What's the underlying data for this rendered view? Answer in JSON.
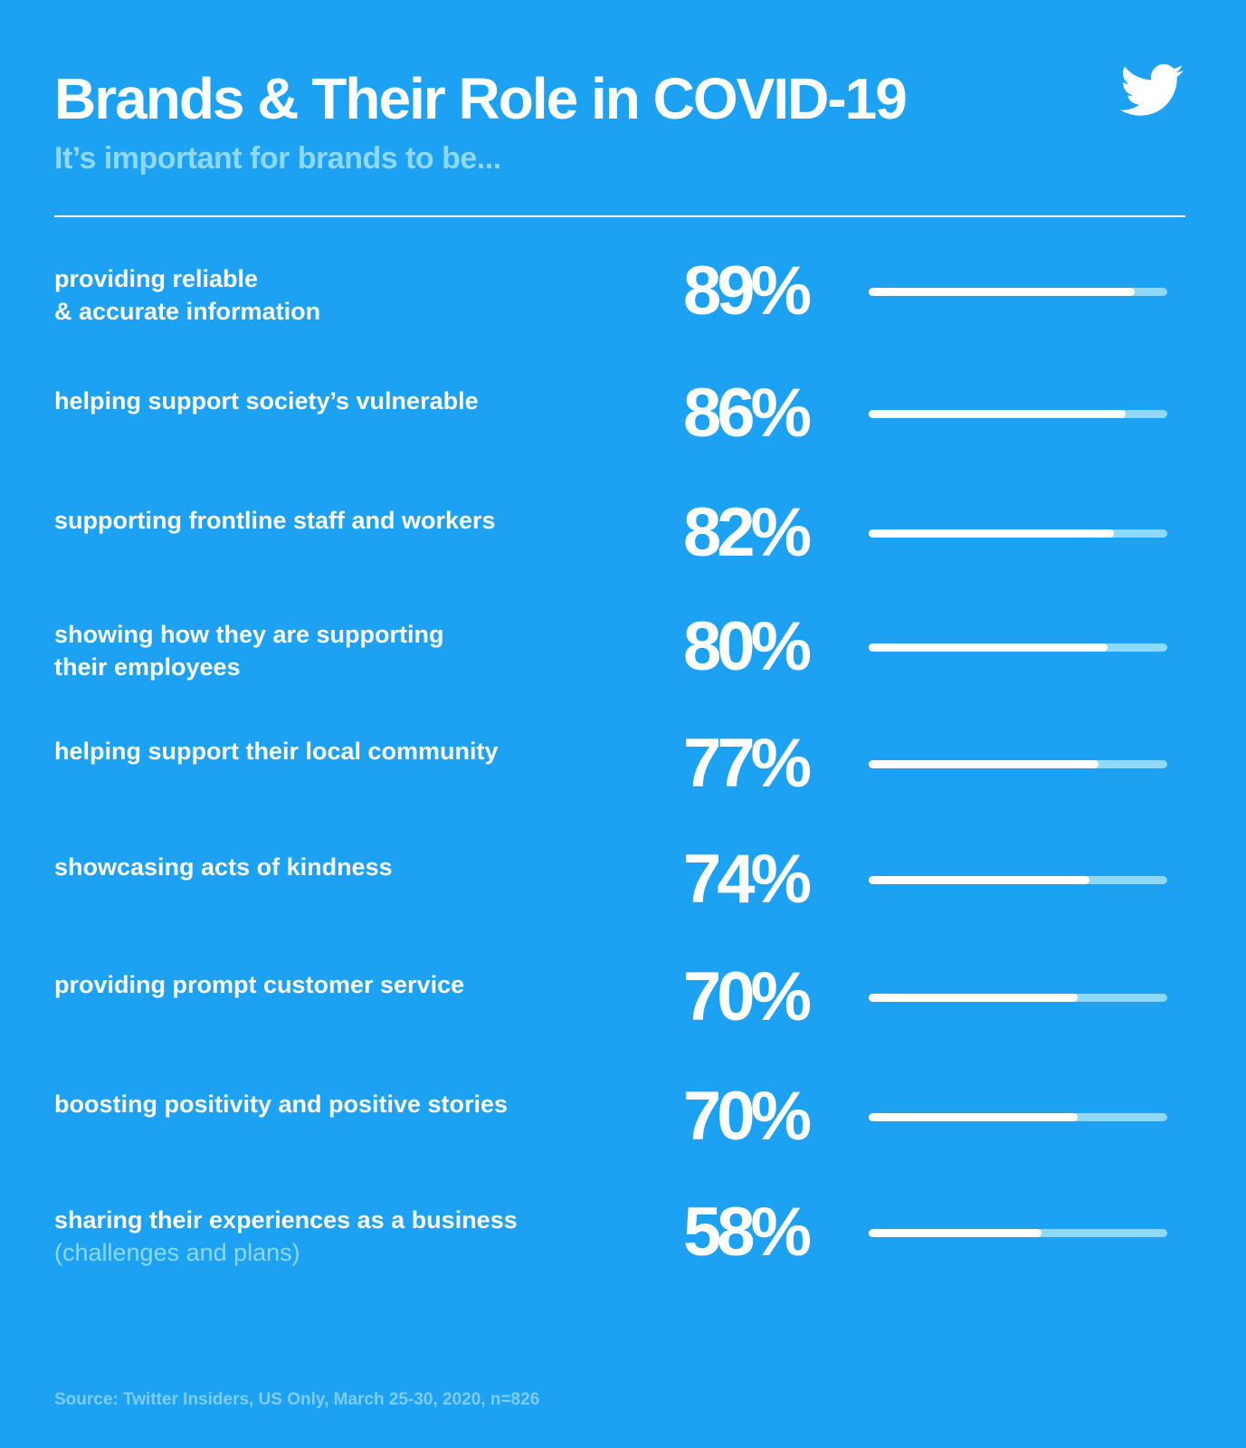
{
  "colors": {
    "background": "#1DA1F2",
    "accent_light": "#8ED8F8",
    "fill": "#FFFFFF"
  },
  "header": {
    "title": "Brands & Their Role in COVID-19",
    "subtitle": "It’s important for brands to be...",
    "logo": "twitter-bird-icon"
  },
  "chart_data": {
    "type": "bar",
    "title": "Brands & Their Role in COVID-19",
    "subtitle": "It’s important for brands to be...",
    "ylim": [
      0,
      100
    ],
    "categories": [
      {
        "line1": "providing reliable",
        "line2": "& accurate information",
        "sub": ""
      },
      {
        "line1": "helping support society’s vulnerable",
        "line2": "",
        "sub": ""
      },
      {
        "line1": "supporting frontline staff and workers",
        "line2": "",
        "sub": ""
      },
      {
        "line1": "showing how they are supporting",
        "line2": "their employees",
        "sub": ""
      },
      {
        "line1": "helping support their local community",
        "line2": "",
        "sub": ""
      },
      {
        "line1": "showcasing acts of kindness",
        "line2": "",
        "sub": ""
      },
      {
        "line1": "providing prompt customer service",
        "line2": "",
        "sub": ""
      },
      {
        "line1": "boosting positivity and positive stories",
        "line2": "",
        "sub": ""
      },
      {
        "line1": "sharing their experiences as a business",
        "line2": "",
        "sub": "(challenges and plans)"
      }
    ],
    "values": [
      89,
      86,
      82,
      80,
      77,
      74,
      70,
      70,
      58
    ],
    "value_labels": [
      "89%",
      "86%",
      "82%",
      "80%",
      "77%",
      "74%",
      "70%",
      "70%",
      "58%"
    ]
  },
  "footer": {
    "source": "Source: Twitter Insiders, US Only, March 25-30, 2020, n=826"
  }
}
